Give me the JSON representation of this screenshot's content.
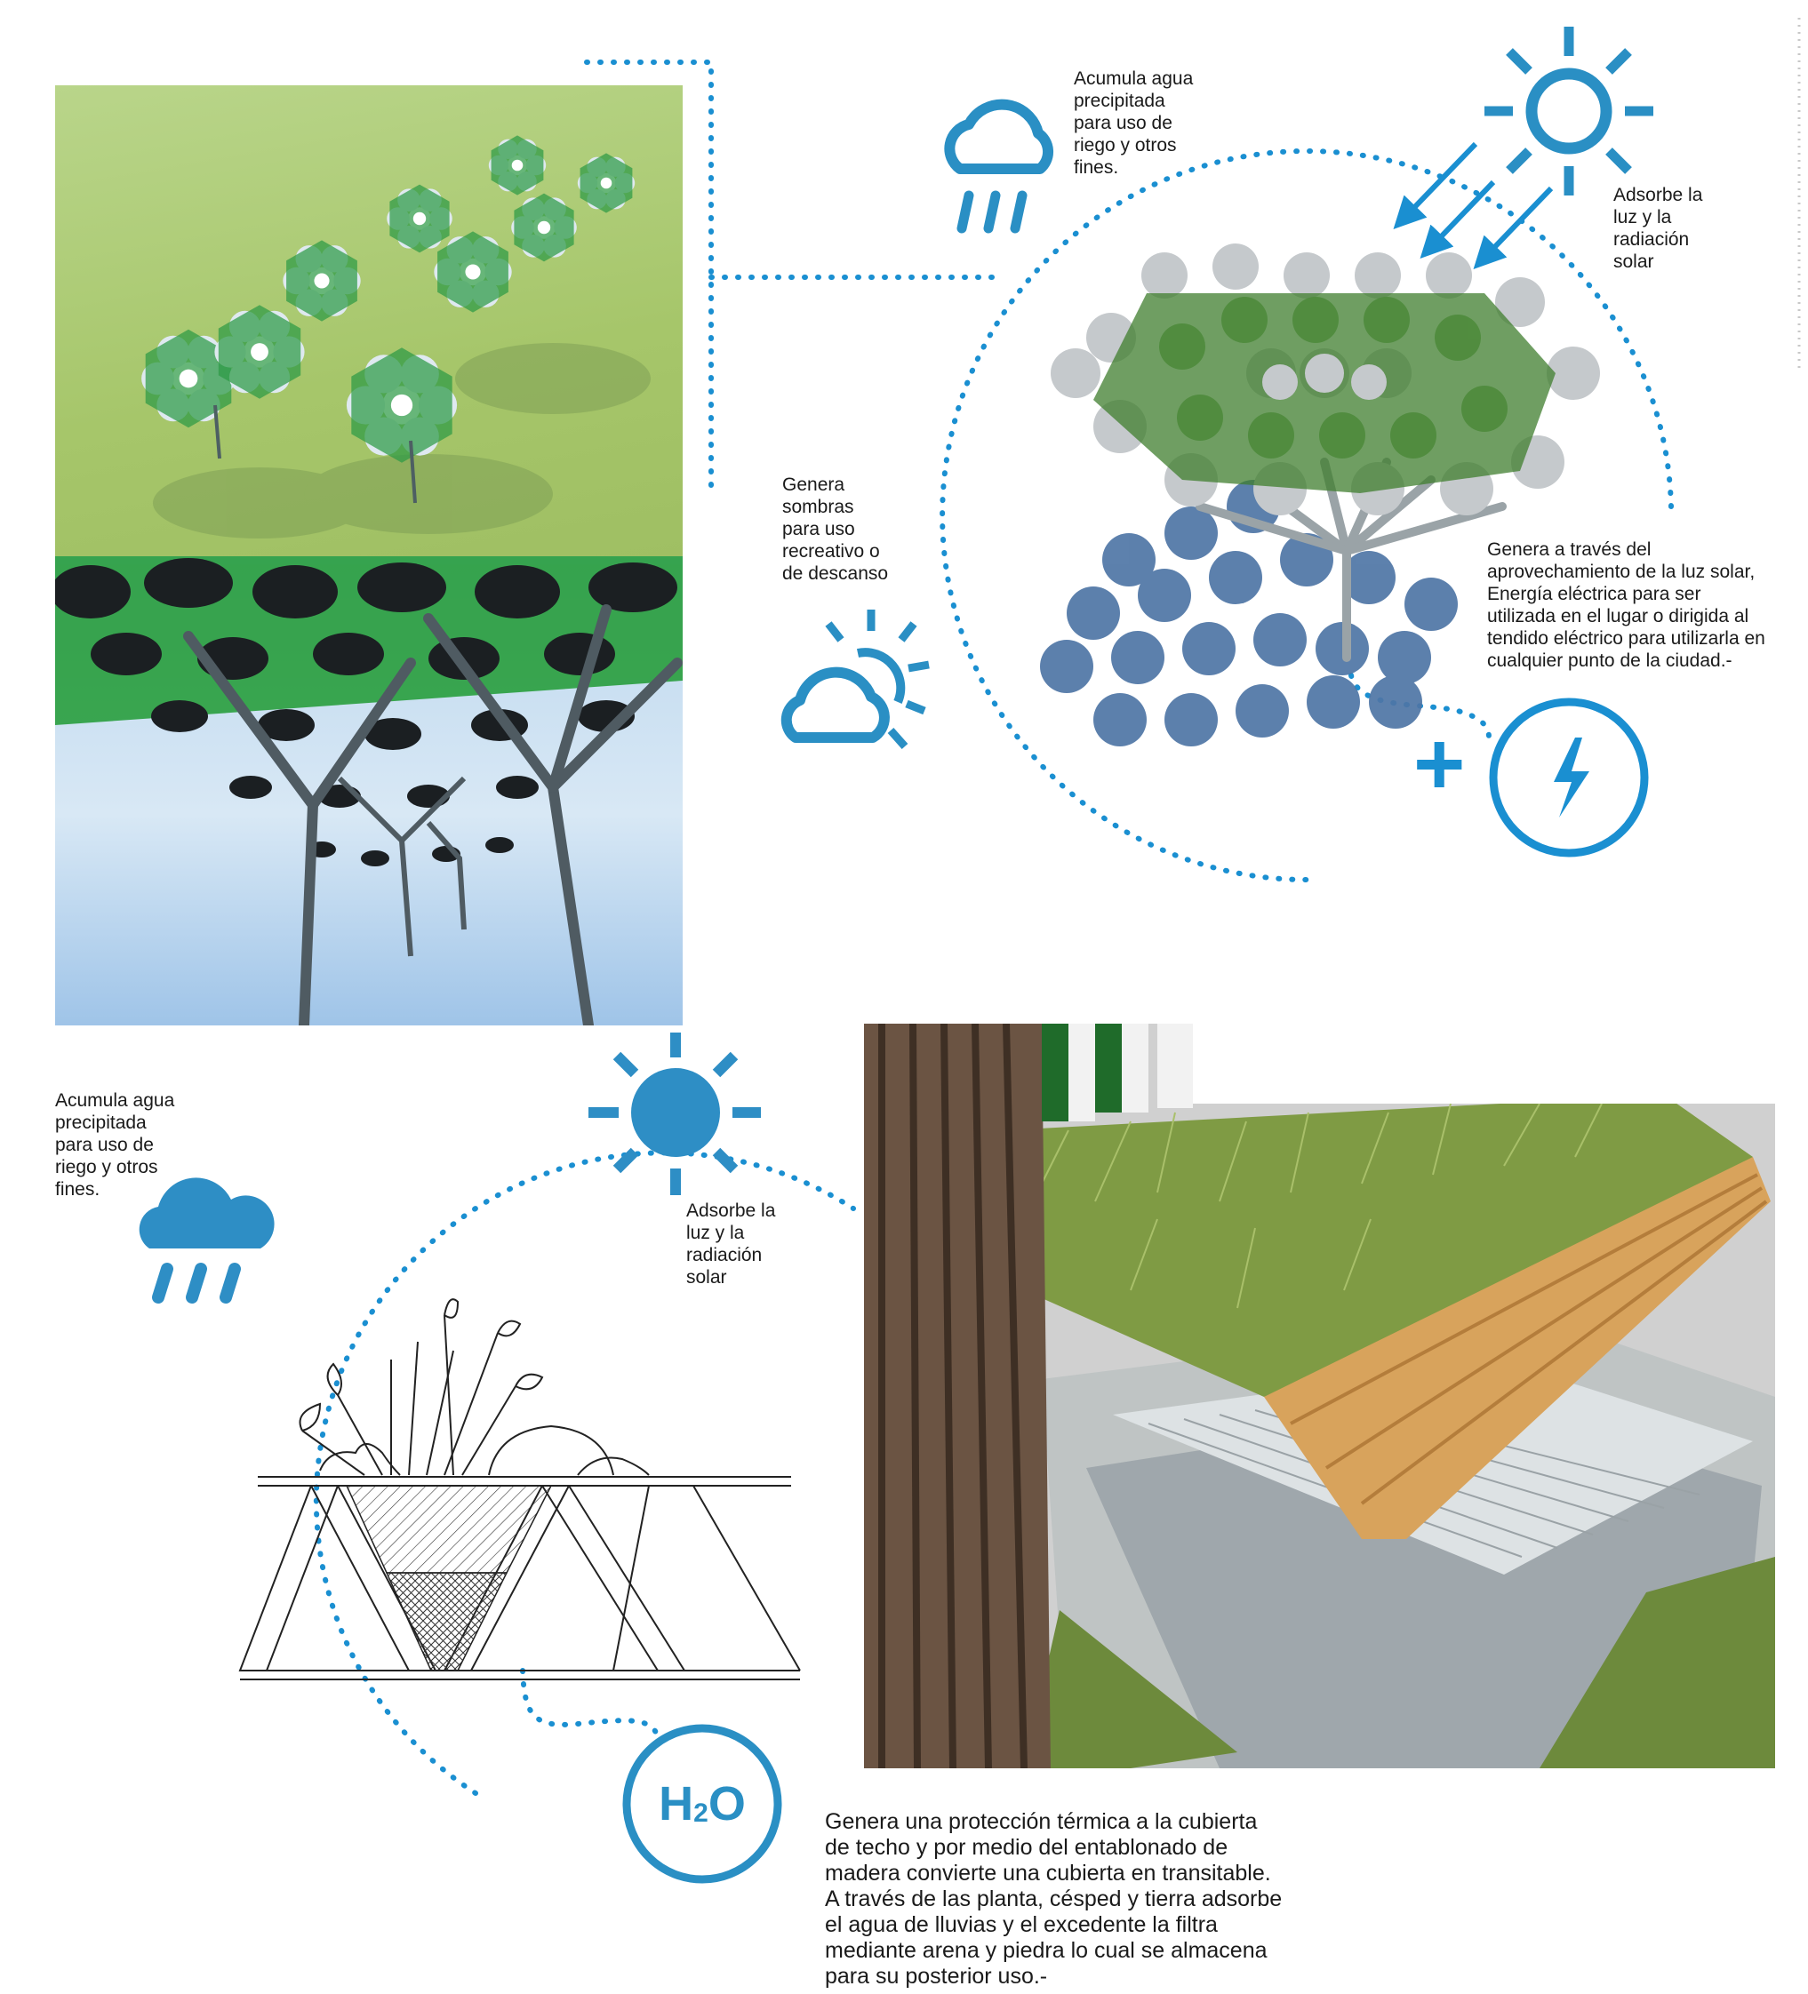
{
  "top": {
    "water_caption": "Acumula agua\nprecipitada\npara uso de\nriego y otros\nfines.",
    "solar_caption": "Adsorbe la\nluz y la\nradiación\nsolar",
    "shade_caption": "Genera\nsombras\npara uso\nrecreativo o\nde descanso",
    "energy_caption": "Genera a través del\naprovechamiento de la luz solar,\nEnergía eléctrica para ser\nutilizada en el lugar o dirigida al\ntendido eléctrico para utilizarla en\ncualquier punto de la ciudad.-",
    "plus_symbol": "+"
  },
  "bottom": {
    "water_caption": "Acumula agua\nprecipitada\npara uso de\nriego y otros\nfines.",
    "solar_caption": "Adsorbe la\nluz y la\nradiación\nsolar",
    "h2o_main": "H",
    "h2o_sub": "2",
    "h2o_end": "O",
    "roof_caption": "Genera una protección térmica a la cubierta\nde techo y por medio del entablonado de\nmadera convierte una cubierta en transitable.\nA través de las planta, césped y tierra adsorbe\nel agua de lluvias y el excedente la filtra\nmediante arena y piedra lo cual se almacena\npara su posterior uso.-"
  },
  "colors": {
    "accent": "#1a8fd1",
    "icon_blue": "#2a8fc4",
    "dark_icon": "#2e8ec5",
    "grass": "#b5cf7e",
    "sky": "#cfe4f5"
  }
}
